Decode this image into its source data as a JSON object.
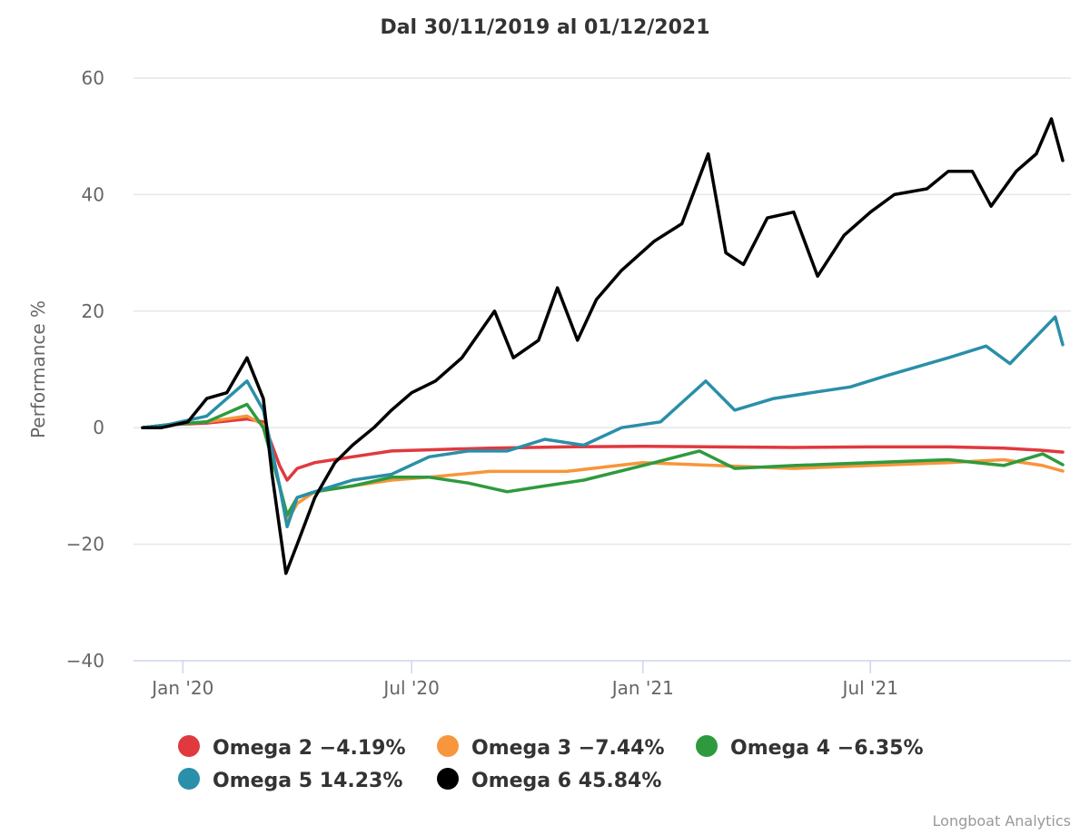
{
  "chart_data": {
    "type": "line",
    "title": "Dal 30/11/2019 al 01/12/2021",
    "xlabel": "",
    "ylabel": "Performance %",
    "ylim": [
      -40,
      60
    ],
    "yticks": [
      -40,
      -20,
      0,
      20,
      40,
      60
    ],
    "xlim": [
      "2019-11-30",
      "2021-12-01"
    ],
    "xticks": [
      {
        "date": "2020-01-01",
        "label": "Jan '20"
      },
      {
        "date": "2020-07-01",
        "label": "Jul '20"
      },
      {
        "date": "2021-01-01",
        "label": "Jan '21"
      },
      {
        "date": "2021-07-01",
        "label": "Jul '21"
      }
    ],
    "grid": true,
    "legend_position": "bottom",
    "credits": "Longboat Analytics",
    "series": [
      {
        "name": "Omega 2",
        "legend": "Omega 2 −4.19%",
        "color": "#e0393e",
        "points": [
          [
            "2019-11-30",
            0
          ],
          [
            "2019-12-20",
            0.5
          ],
          [
            "2020-01-20",
            0.8
          ],
          [
            "2020-02-21",
            1.5
          ],
          [
            "2020-03-05",
            1.0
          ],
          [
            "2020-03-18",
            -6.5
          ],
          [
            "2020-03-24",
            -9.0
          ],
          [
            "2020-04-01",
            -7.0
          ],
          [
            "2020-04-15",
            -6.0
          ],
          [
            "2020-05-15",
            -5.0
          ],
          [
            "2020-06-15",
            -4.0
          ],
          [
            "2020-07-15",
            -3.8
          ],
          [
            "2020-09-01",
            -3.5
          ],
          [
            "2020-11-01",
            -3.3
          ],
          [
            "2021-01-01",
            -3.2
          ],
          [
            "2021-03-01",
            -3.3
          ],
          [
            "2021-05-01",
            -3.4
          ],
          [
            "2021-07-01",
            -3.3
          ],
          [
            "2021-09-01",
            -3.3
          ],
          [
            "2021-10-15",
            -3.5
          ],
          [
            "2021-11-15",
            -3.9
          ],
          [
            "2021-12-01",
            -4.19
          ]
        ]
      },
      {
        "name": "Omega 3",
        "legend": "Omega 3 −7.44%",
        "color": "#f7963c",
        "points": [
          [
            "2019-11-30",
            0
          ],
          [
            "2019-12-20",
            0.5
          ],
          [
            "2020-01-20",
            1.0
          ],
          [
            "2020-02-21",
            2.0
          ],
          [
            "2020-03-05",
            0.5
          ],
          [
            "2020-03-18",
            -10.0
          ],
          [
            "2020-03-24",
            -16.0
          ],
          [
            "2020-04-01",
            -13.0
          ],
          [
            "2020-04-15",
            -11.0
          ],
          [
            "2020-05-15",
            -10.0
          ],
          [
            "2020-06-15",
            -9.0
          ],
          [
            "2020-07-15",
            -8.5
          ],
          [
            "2020-09-01",
            -7.5
          ],
          [
            "2020-11-01",
            -7.5
          ],
          [
            "2021-01-01",
            -6.0
          ],
          [
            "2021-03-01",
            -6.5
          ],
          [
            "2021-05-01",
            -7.0
          ],
          [
            "2021-07-01",
            -6.5
          ],
          [
            "2021-09-01",
            -6.0
          ],
          [
            "2021-10-15",
            -5.5
          ],
          [
            "2021-11-15",
            -6.5
          ],
          [
            "2021-12-01",
            -7.44
          ]
        ]
      },
      {
        "name": "Omega 4",
        "legend": "Omega 4 −6.35%",
        "color": "#2e9a3e",
        "points": [
          [
            "2019-11-30",
            0
          ],
          [
            "2019-12-20",
            0.5
          ],
          [
            "2020-01-20",
            1.0
          ],
          [
            "2020-02-21",
            4.0
          ],
          [
            "2020-03-05",
            0.0
          ],
          [
            "2020-03-18",
            -10.0
          ],
          [
            "2020-03-24",
            -15.0
          ],
          [
            "2020-04-01",
            -12.0
          ],
          [
            "2020-04-15",
            -11.0
          ],
          [
            "2020-05-15",
            -10.0
          ],
          [
            "2020-06-15",
            -8.5
          ],
          [
            "2020-07-15",
            -8.5
          ],
          [
            "2020-08-15",
            -9.5
          ],
          [
            "2020-09-15",
            -11.0
          ],
          [
            "2020-10-15",
            -10.0
          ],
          [
            "2020-11-15",
            -9.0
          ],
          [
            "2021-01-01",
            -6.5
          ],
          [
            "2021-02-15",
            -4.0
          ],
          [
            "2021-03-15",
            -7.0
          ],
          [
            "2021-05-01",
            -6.5
          ],
          [
            "2021-07-01",
            -6.0
          ],
          [
            "2021-09-01",
            -5.5
          ],
          [
            "2021-10-15",
            -6.5
          ],
          [
            "2021-11-15",
            -4.5
          ],
          [
            "2021-12-01",
            -6.35
          ]
        ]
      },
      {
        "name": "Omega 5",
        "legend": "Omega 5 14.23%",
        "color": "#2a8fa8",
        "points": [
          [
            "2019-11-30",
            0
          ],
          [
            "2019-12-20",
            0.5
          ],
          [
            "2020-01-20",
            2.0
          ],
          [
            "2020-02-21",
            8.0
          ],
          [
            "2020-03-05",
            3.0
          ],
          [
            "2020-03-18",
            -10.0
          ],
          [
            "2020-03-24",
            -17.0
          ],
          [
            "2020-04-01",
            -12.0
          ],
          [
            "2020-04-15",
            -11.0
          ],
          [
            "2020-05-15",
            -9.0
          ],
          [
            "2020-06-15",
            -8.0
          ],
          [
            "2020-07-15",
            -5.0
          ],
          [
            "2020-08-15",
            -4.0
          ],
          [
            "2020-09-15",
            -4.0
          ],
          [
            "2020-10-15",
            -2.0
          ],
          [
            "2020-11-15",
            -3.0
          ],
          [
            "2020-12-15",
            0.0
          ],
          [
            "2021-01-15",
            1.0
          ],
          [
            "2021-02-20",
            8.0
          ],
          [
            "2021-03-15",
            3.0
          ],
          [
            "2021-04-15",
            5.0
          ],
          [
            "2021-05-15",
            6.0
          ],
          [
            "2021-06-15",
            7.0
          ],
          [
            "2021-07-15",
            9.0
          ],
          [
            "2021-09-01",
            12.0
          ],
          [
            "2021-10-01",
            14.0
          ],
          [
            "2021-10-20",
            11.0
          ],
          [
            "2021-11-25",
            19.0
          ],
          [
            "2021-12-01",
            14.23
          ]
        ]
      },
      {
        "name": "Omega 6",
        "legend": "Omega 6 45.84%",
        "color": "#000000",
        "points": [
          [
            "2019-11-30",
            0
          ],
          [
            "2019-12-15",
            0.0
          ],
          [
            "2020-01-05",
            1.0
          ],
          [
            "2020-01-20",
            5.0
          ],
          [
            "2020-02-05",
            6.0
          ],
          [
            "2020-02-21",
            12.0
          ],
          [
            "2020-03-05",
            5.0
          ],
          [
            "2020-03-12",
            -8.0
          ],
          [
            "2020-03-23",
            -25.0
          ],
          [
            "2020-04-01",
            -20.0
          ],
          [
            "2020-04-15",
            -12.0
          ],
          [
            "2020-05-01",
            -6.0
          ],
          [
            "2020-05-15",
            -3.0
          ],
          [
            "2020-06-01",
            0.0
          ],
          [
            "2020-06-15",
            3.0
          ],
          [
            "2020-07-01",
            6.0
          ],
          [
            "2020-07-20",
            8.0
          ],
          [
            "2020-08-10",
            12.0
          ],
          [
            "2020-09-05",
            20.0
          ],
          [
            "2020-09-20",
            12.0
          ],
          [
            "2020-10-10",
            15.0
          ],
          [
            "2020-10-25",
            24.0
          ],
          [
            "2020-11-10",
            15.0
          ],
          [
            "2020-11-25",
            22.0
          ],
          [
            "2020-12-15",
            27.0
          ],
          [
            "2021-01-10",
            32.0
          ],
          [
            "2021-02-01",
            35.0
          ],
          [
            "2021-02-22",
            47.0
          ],
          [
            "2021-03-08",
            30.0
          ],
          [
            "2021-03-22",
            28.0
          ],
          [
            "2021-04-10",
            36.0
          ],
          [
            "2021-05-01",
            37.0
          ],
          [
            "2021-05-20",
            26.0
          ],
          [
            "2021-06-10",
            33.0
          ],
          [
            "2021-07-01",
            37.0
          ],
          [
            "2021-07-20",
            40.0
          ],
          [
            "2021-08-15",
            41.0
          ],
          [
            "2021-09-01",
            44.0
          ],
          [
            "2021-09-20",
            44.0
          ],
          [
            "2021-10-05",
            38.0
          ],
          [
            "2021-10-25",
            44.0
          ],
          [
            "2021-11-10",
            47.0
          ],
          [
            "2021-11-22",
            53.0
          ],
          [
            "2021-12-01",
            45.84
          ]
        ]
      }
    ]
  }
}
